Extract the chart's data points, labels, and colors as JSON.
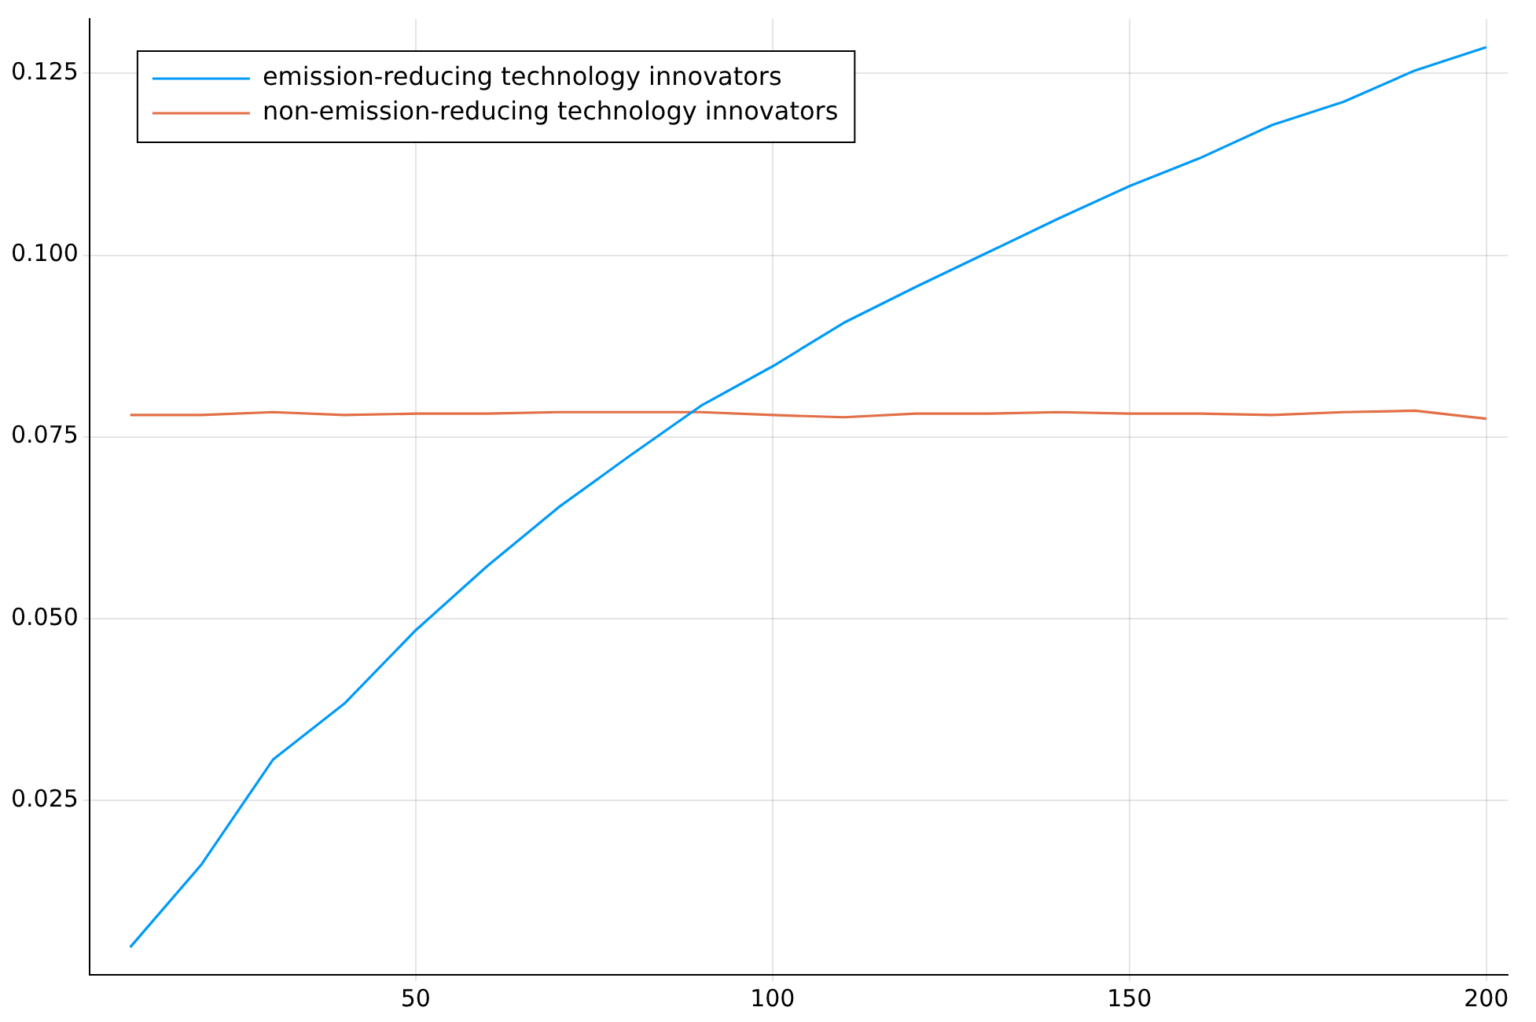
{
  "chart_data": {
    "type": "line",
    "x": [
      10,
      20,
      30,
      40,
      50,
      60,
      70,
      80,
      90,
      100,
      110,
      120,
      130,
      140,
      150,
      160,
      170,
      180,
      190,
      200
    ],
    "series": [
      {
        "name": "emission-reducing technology innovators",
        "color": "#009af9",
        "values": [
          0.0048,
          0.0162,
          0.0306,
          0.0383,
          0.0484,
          0.0572,
          0.0653,
          0.0724,
          0.0793,
          0.0847,
          0.0907,
          0.0956,
          0.1003,
          0.105,
          0.1095,
          0.1134,
          0.1179,
          0.1211,
          0.1254,
          0.1286
        ]
      },
      {
        "name": "non-emission-reducing technology innovators",
        "color": "#e26f46",
        "values": [
          0.078,
          0.078,
          0.0784,
          0.078,
          0.0782,
          0.0782,
          0.0784,
          0.0784,
          0.0784,
          0.078,
          0.0777,
          0.0782,
          0.0782,
          0.0784,
          0.0782,
          0.0782,
          0.078,
          0.0784,
          0.0786,
          0.0775
        ]
      }
    ],
    "xlim": [
      4.3,
      203
    ],
    "xticks": [
      50,
      100,
      150,
      200
    ],
    "ylim": [
      0.001,
      0.1325
    ],
    "yticks": [
      {
        "value": 0.025,
        "label": "0.025"
      },
      {
        "value": 0.05,
        "label": "0.050"
      },
      {
        "value": 0.075,
        "label": "0.075"
      },
      {
        "value": 0.1,
        "label": "0.100"
      },
      {
        "value": 0.125,
        "label": "0.125"
      }
    ],
    "grid": true,
    "legend": "top left",
    "marker": "none",
    "line_style": "solid"
  }
}
